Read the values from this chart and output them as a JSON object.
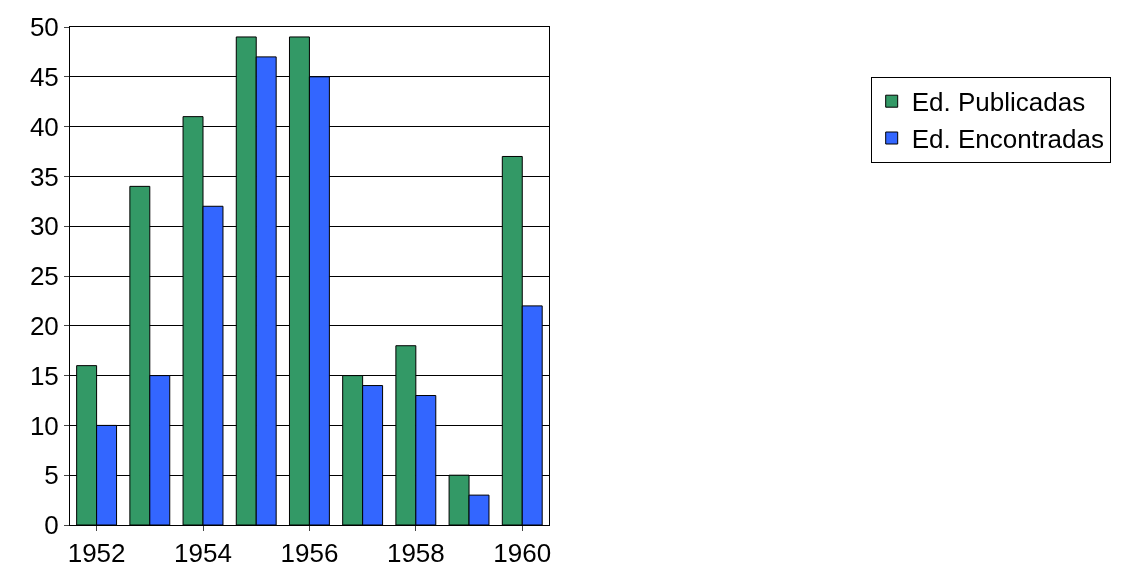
{
  "chart_data": {
    "type": "bar",
    "categories": [
      "1952",
      null,
      "1954",
      null,
      "1956",
      null,
      "1958",
      null,
      "1960"
    ],
    "series": [
      {
        "name": "Ed. Publicadas",
        "color": "#339966",
        "values": [
          16,
          34,
          41,
          49,
          49,
          15,
          18,
          5,
          37
        ]
      },
      {
        "name": "Ed. Encontradas",
        "color": "#3366ff",
        "values": [
          10,
          15,
          32,
          47,
          45,
          14,
          13,
          3,
          22
        ]
      }
    ],
    "ylim": [
      0,
      50
    ],
    "yticks": [
      0,
      5,
      10,
      15,
      20,
      25,
      30,
      35,
      40,
      45,
      50
    ],
    "grid": "y",
    "legend": "right"
  }
}
